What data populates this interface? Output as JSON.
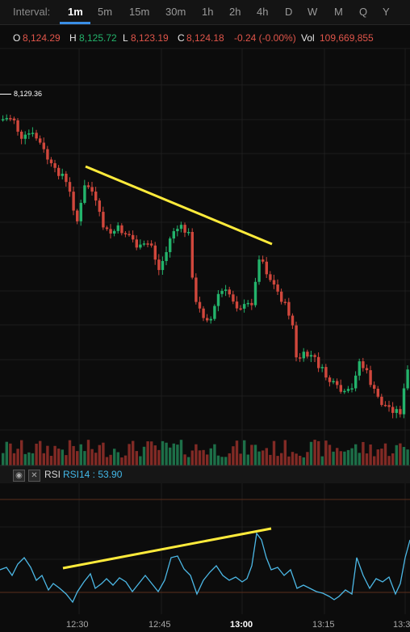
{
  "toolbar": {
    "interval_label": "Interval:",
    "intervals": [
      "1m",
      "5m",
      "15m",
      "30m",
      "1h",
      "2h",
      "4h",
      "D",
      "W",
      "M",
      "Q",
      "Y"
    ],
    "active_interval": "1m",
    "accent": "#3a8ee6"
  },
  "ohlc": {
    "o_key": "O",
    "o": "8,124.29",
    "h_key": "H",
    "h": "8,125.72",
    "l_key": "L",
    "l": "8,123.19",
    "c_key": "C",
    "c": "8,124.18",
    "change": "-0.24 (-0.00%)",
    "vol_key": "Vol",
    "vol": "109,669,855"
  },
  "price_tag": "8,129.36",
  "rsi": {
    "name": "RSI",
    "label": "RSI14 : 53.90",
    "line_color": "#4cb8e6"
  },
  "x_axis": [
    "12:30",
    "12:45",
    "13:00",
    "13:15",
    "13:3"
  ],
  "icons": [
    "eye-icon",
    "close-icon"
  ],
  "colors": {
    "up": "#23b36b",
    "down": "#d0473c",
    "trendline": "#ffeb3b",
    "background": "#0c0c0c"
  }
}
